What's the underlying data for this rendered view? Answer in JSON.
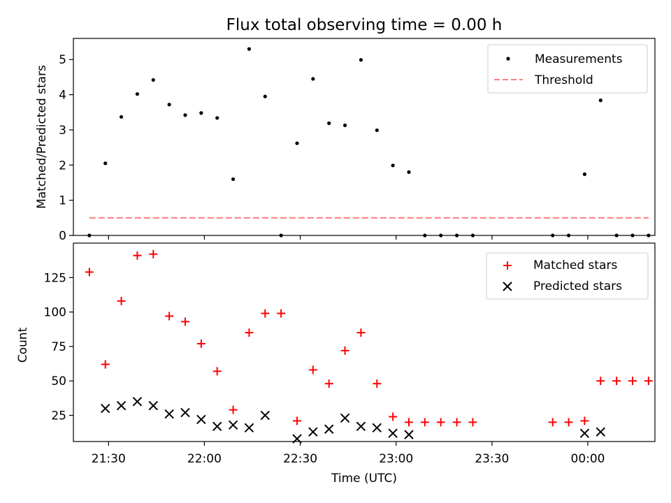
{
  "figure_title": "Flux total observing time = 0.00 h",
  "colors": {
    "measurements": "#000000",
    "threshold": "#ff8080",
    "matched": "#ff0000",
    "predicted": "#000000"
  },
  "chart_data": [
    {
      "type": "scatter",
      "ylabel": "Matched/Predicted stars",
      "xlabel": "",
      "ylim": [
        0,
        5.6
      ],
      "yticks": [
        0,
        1,
        2,
        3,
        4,
        5
      ],
      "legend": {
        "position": "top-right",
        "entries": [
          "Measurements",
          "Threshold"
        ]
      },
      "series": [
        {
          "name": "Measurements",
          "marker": "dot",
          "points": [
            [
              "21:24",
              0.0
            ],
            [
              "21:29",
              2.05
            ],
            [
              "21:34",
              3.37
            ],
            [
              "21:39",
              4.02
            ],
            [
              "21:44",
              4.42
            ],
            [
              "21:49",
              3.72
            ],
            [
              "21:54",
              3.42
            ],
            [
              "21:59",
              3.48
            ],
            [
              "22:04",
              3.34
            ],
            [
              "22:09",
              1.6
            ],
            [
              "22:14",
              5.3
            ],
            [
              "22:19",
              3.95
            ],
            [
              "22:24",
              0.0
            ],
            [
              "22:29",
              2.62
            ],
            [
              "22:34",
              4.45
            ],
            [
              "22:39",
              3.19
            ],
            [
              "22:44",
              3.13
            ],
            [
              "22:49",
              4.99
            ],
            [
              "22:54",
              2.99
            ],
            [
              "22:59",
              1.99
            ],
            [
              "23:04",
              1.8
            ],
            [
              "23:09",
              0.0
            ],
            [
              "23:14",
              0.0
            ],
            [
              "23:19",
              0.0
            ],
            [
              "23:24",
              0.0
            ],
            [
              "23:49",
              0.0
            ],
            [
              "23:54",
              0.0
            ],
            [
              "23:59",
              1.74
            ],
            [
              "00:04",
              3.84
            ],
            [
              "00:09",
              0.0
            ],
            [
              "00:14",
              0.0
            ],
            [
              "00:19",
              0.0
            ]
          ]
        },
        {
          "name": "Threshold",
          "marker": "dashed-line",
          "points": [
            [
              "21:24",
              0.5
            ],
            [
              "00:19",
              0.5
            ]
          ]
        }
      ]
    },
    {
      "type": "scatter",
      "ylabel": "Count",
      "xlabel": "Time (UTC)",
      "xlim": [
        "21:19",
        "00:21"
      ],
      "xticks": [
        "21:30",
        "22:00",
        "22:30",
        "23:00",
        "23:30",
        "00:00"
      ],
      "ylim": [
        6,
        150
      ],
      "yticks": [
        25,
        50,
        75,
        100,
        125
      ],
      "legend": {
        "position": "top-right",
        "entries": [
          "Matched stars",
          "Predicted stars"
        ]
      },
      "series": [
        {
          "name": "Matched stars",
          "marker": "plus",
          "points": [
            [
              "21:24",
              129
            ],
            [
              "21:29",
              62
            ],
            [
              "21:34",
              108
            ],
            [
              "21:39",
              141
            ],
            [
              "21:44",
              142
            ],
            [
              "21:49",
              97
            ],
            [
              "21:54",
              93
            ],
            [
              "21:59",
              77
            ],
            [
              "22:04",
              57
            ],
            [
              "22:09",
              29
            ],
            [
              "22:14",
              85
            ],
            [
              "22:19",
              99
            ],
            [
              "22:24",
              99
            ],
            [
              "22:29",
              21
            ],
            [
              "22:34",
              58
            ],
            [
              "22:39",
              48
            ],
            [
              "22:44",
              72
            ],
            [
              "22:49",
              85
            ],
            [
              "22:54",
              48
            ],
            [
              "22:59",
              24
            ],
            [
              "23:04",
              20
            ],
            [
              "23:09",
              20
            ],
            [
              "23:14",
              20
            ],
            [
              "23:19",
              20
            ],
            [
              "23:24",
              20
            ],
            [
              "23:49",
              20
            ],
            [
              "23:54",
              20
            ],
            [
              "23:59",
              21
            ],
            [
              "00:04",
              50
            ],
            [
              "00:09",
              50
            ],
            [
              "00:14",
              50
            ],
            [
              "00:19",
              50
            ]
          ]
        },
        {
          "name": "Predicted stars",
          "marker": "x",
          "points": [
            [
              "21:29",
              30
            ],
            [
              "21:34",
              32
            ],
            [
              "21:39",
              35
            ],
            [
              "21:44",
              32
            ],
            [
              "21:49",
              26
            ],
            [
              "21:54",
              27
            ],
            [
              "21:59",
              22
            ],
            [
              "22:04",
              17
            ],
            [
              "22:09",
              18
            ],
            [
              "22:14",
              16
            ],
            [
              "22:19",
              25
            ],
            [
              "22:29",
              8
            ],
            [
              "22:34",
              13
            ],
            [
              "22:39",
              15
            ],
            [
              "22:44",
              23
            ],
            [
              "22:49",
              17
            ],
            [
              "22:54",
              16
            ],
            [
              "22:59",
              12
            ],
            [
              "23:04",
              11
            ],
            [
              "23:59",
              12
            ],
            [
              "00:04",
              13
            ]
          ]
        }
      ]
    }
  ]
}
